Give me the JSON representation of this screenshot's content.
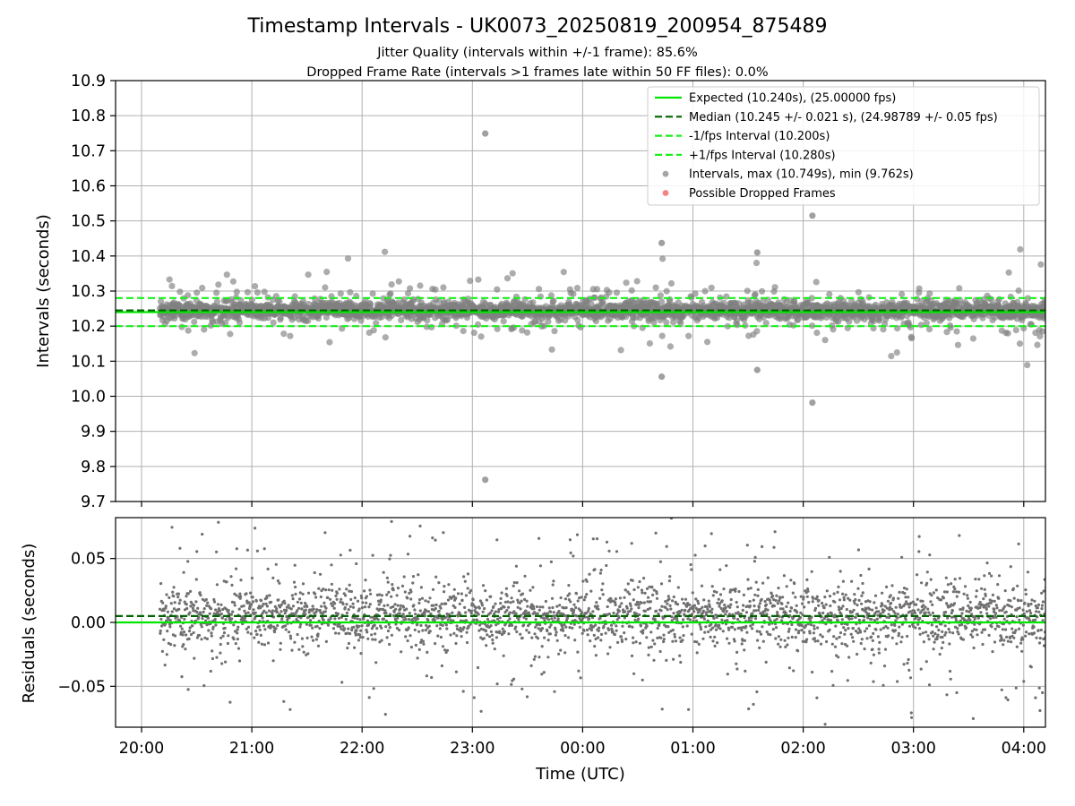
{
  "title": "Timestamp Intervals - UK0073_20250819_200954_875489",
  "subtitle_1": "Jitter Quality (intervals within +/-1 frame): 85.6%",
  "subtitle_2": "Dropped Frame Rate (intervals >1 frames late within 50 FF files): 0.0%",
  "colors": {
    "expected": "#00e600",
    "median": "#006400",
    "band": "#1aee1a",
    "points": "#808080",
    "dropped": "#f05050",
    "grid": "#b0b0b0"
  },
  "chart_data": [
    {
      "type": "scatter",
      "ylabel": "Intervals (seconds)",
      "ylim": [
        9.7,
        10.9
      ],
      "yticks": [
        9.7,
        9.8,
        9.9,
        10.0,
        10.1,
        10.2,
        10.3,
        10.4,
        10.5,
        10.6,
        10.7,
        10.8,
        10.9
      ],
      "ytick_labels": [
        "9.7",
        "9.8",
        "9.9",
        "10.0",
        "10.1",
        "10.2",
        "10.3",
        "10.4",
        "10.5",
        "10.6",
        "10.7",
        "10.8",
        "10.9"
      ],
      "grid": true,
      "legend_position": "top-right",
      "legend": [
        {
          "label": "Expected (10.240s), (25.00000 fps)",
          "style": "solid",
          "color_key": "expected"
        },
        {
          "label": "Median (10.245 +/- 0.021 s), (24.98789 +/- 0.05 fps)",
          "style": "dashed",
          "color_key": "median"
        },
        {
          "label": "-1/fps Interval (10.200s)",
          "style": "dashed",
          "color_key": "band"
        },
        {
          "label": "+1/fps Interval (10.280s)",
          "style": "dashed",
          "color_key": "band"
        },
        {
          "label": "Intervals, max (10.749s), min (9.762s)",
          "style": "marker",
          "color_key": "points"
        },
        {
          "label": "Possible Dropped Frames",
          "style": "marker",
          "color_key": "dropped"
        }
      ],
      "reference_lines": {
        "expected": 10.24,
        "median": 10.245,
        "minus_1_fps": 10.2,
        "plus_1_fps": 10.28
      },
      "series_summary": {
        "start_time": "20:10",
        "end_time": "04:14",
        "interval_mean": 10.245,
        "interval_max": 10.749,
        "interval_min": 9.762
      },
      "notable_points": [
        {
          "time": "23:07",
          "value": 10.749
        },
        {
          "time": "23:07",
          "value": 9.762
        },
        {
          "time": "02:05",
          "value": 10.515
        },
        {
          "time": "02:05",
          "value": 9.982
        },
        {
          "time": "00:43",
          "value": 10.437
        },
        {
          "time": "00:43",
          "value": 10.056
        },
        {
          "time": "01:35",
          "value": 10.41
        },
        {
          "time": "01:35",
          "value": 10.075
        }
      ]
    },
    {
      "type": "scatter",
      "xlabel": "Time (UTC)",
      "ylabel": "Residuals (seconds)",
      "ylim": [
        -0.082,
        0.082
      ],
      "yticks": [
        -0.05,
        0.0,
        0.05
      ],
      "ytick_labels": [
        "−0.05",
        "0.00",
        "0.05"
      ],
      "xticks": [
        "20:00",
        "21:00",
        "22:00",
        "23:00",
        "00:00",
        "01:00",
        "02:00",
        "03:00",
        "04:00"
      ],
      "grid": true,
      "reference_lines": {
        "expected": 0.0,
        "median": 0.005
      },
      "series_summary": {
        "residual_mean": 0.005,
        "residual_std": 0.021
      }
    }
  ]
}
